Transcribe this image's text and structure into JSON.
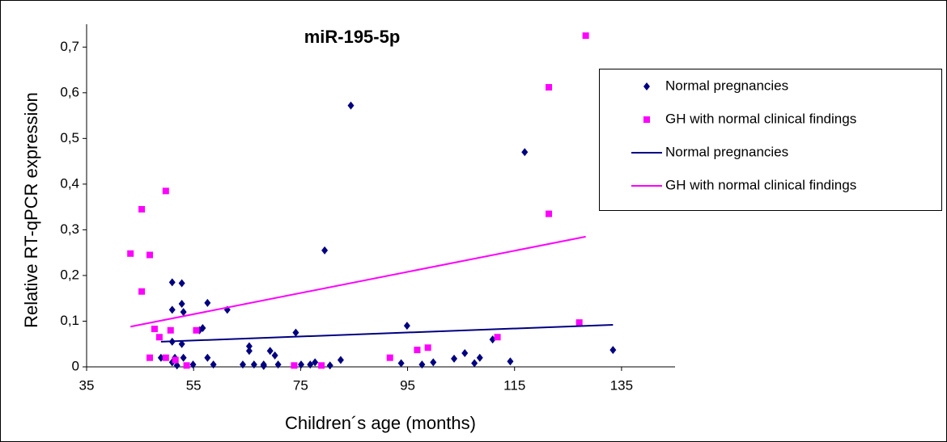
{
  "chart_data": {
    "type": "scatter",
    "title": "miR-195-5p",
    "x_label": "Children´s age (months)",
    "y_label": "Relative RT-qPCR expression",
    "xlim": [
      35,
      145
    ],
    "xticks": [
      35,
      55,
      75,
      95,
      115,
      135
    ],
    "ylim": [
      0,
      0.75
    ],
    "yticks": [
      0,
      {
        "value": 0.1,
        "label": "0,1"
      },
      {
        "value": 0.2,
        "label": "0,2"
      },
      {
        "value": 0.3,
        "label": "0,3"
      },
      {
        "value": 0.4,
        "label": "0,4"
      },
      {
        "value": 0.5,
        "label": "0,5"
      },
      {
        "value": 0.6,
        "label": "0,6"
      },
      {
        "value": 0.7,
        "label": "0,7"
      }
    ],
    "grid": false,
    "legend": "right",
    "series": [
      {
        "name": "Normal pregnancies",
        "color": "#000080",
        "style": "markers",
        "marker": "diamond",
        "x": [
          51.0,
          52.8,
          51.0,
          52.8,
          53.1,
          48.9,
          51.0,
          52.8,
          51.5,
          53.1,
          51.0,
          51.9,
          56.1,
          56.7,
          57.6,
          61.3,
          57.6,
          58.7,
          54.9,
          64.2,
          65.4,
          65.4,
          66.3,
          68.1,
          68.1,
          69.3,
          70.2,
          70.8,
          74.1,
          75.1,
          76.8,
          77.7,
          79.5,
          80.5,
          82.5,
          84.4,
          93.8,
          94.9,
          97.7,
          99.8,
          103.7,
          105.7,
          107.5,
          108.5,
          110.9,
          114.2,
          116.9,
          133.4
        ],
        "values": [
          0.185,
          0.183,
          0.125,
          0.138,
          0.12,
          0.02,
          0.055,
          0.05,
          0.02,
          0.02,
          0.01,
          0.003,
          0.08,
          0.085,
          0.14,
          0.125,
          0.02,
          0.005,
          0.005,
          0.005,
          0.045,
          0.035,
          0.005,
          0.005,
          0.002,
          0.035,
          0.025,
          0.005,
          0.075,
          0.005,
          0.005,
          0.01,
          0.255,
          0.003,
          0.015,
          0.572,
          0.008,
          0.09,
          0.005,
          0.01,
          0.018,
          0.03,
          0.008,
          0.02,
          0.06,
          0.012,
          0.47,
          0.037
        ]
      },
      {
        "name": "GH with normal clinical findings",
        "color": "#ff00ff",
        "style": "markers",
        "marker": "square",
        "x": [
          43.2,
          45.3,
          45.3,
          46.8,
          47.7,
          46.8,
          48.6,
          49.8,
          49.8,
          50.7,
          51.6,
          53.7,
          55.5,
          73.8,
          78.9,
          91.7,
          96.8,
          98.8,
          111.8,
          121.4,
          121.4,
          127.1,
          128.3
        ],
        "values": [
          0.248,
          0.345,
          0.165,
          0.245,
          0.083,
          0.02,
          0.065,
          0.385,
          0.02,
          0.08,
          0.015,
          0.003,
          0.08,
          0.003,
          0.003,
          0.02,
          0.037,
          0.042,
          0.065,
          0.612,
          0.335,
          0.097,
          0.725
        ]
      },
      {
        "name": "Normal pregnancies",
        "color": "#000080",
        "style": "line",
        "x": [
          48.9,
          133.4
        ],
        "values": [
          0.055,
          0.092
        ]
      },
      {
        "name": "GH with normal clinical findings",
        "color": "#ff00ff",
        "style": "line",
        "x": [
          43.2,
          128.3
        ],
        "values": [
          0.088,
          0.285
        ]
      }
    ]
  }
}
